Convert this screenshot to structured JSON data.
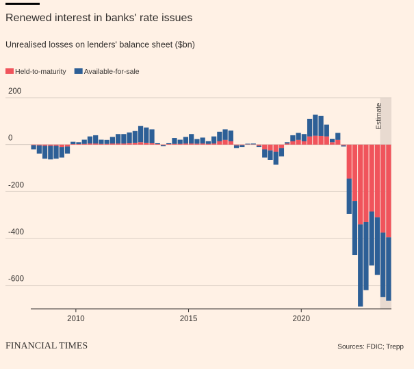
{
  "chart_data": {
    "type": "stacked_bar",
    "title": "Renewed interest in banks' rate issues",
    "subtitle": "Unrealised losses on lenders' balance sheet ($bn)",
    "source": "Sources: FDIC; Trepp",
    "brand": "FINANCIAL TIMES",
    "x": [
      2008,
      2008.25,
      2008.5,
      2008.75,
      2009,
      2009.25,
      2009.5,
      2009.75,
      2010,
      2010.25,
      2010.5,
      2010.75,
      2011,
      2011.25,
      2011.5,
      2011.75,
      2012,
      2012.25,
      2012.5,
      2012.75,
      2013,
      2013.25,
      2013.5,
      2013.75,
      2014,
      2014.25,
      2014.5,
      2014.75,
      2015,
      2015.25,
      2015.5,
      2015.75,
      2016,
      2016.25,
      2016.5,
      2016.75,
      2017,
      2017.25,
      2017.5,
      2017.75,
      2018,
      2018.25,
      2018.5,
      2018.75,
      2019,
      2019.25,
      2019.5,
      2019.75,
      2020,
      2020.25,
      2020.5,
      2020.75,
      2021,
      2021.25,
      2021.5,
      2021.75,
      2022,
      2022.25,
      2022.5,
      2022.75,
      2023,
      2023.25,
      2023.5,
      2023.75
    ],
    "bar_width": 0.25,
    "series": [
      {
        "name": "Held-to-maturity",
        "color": "#f0545c",
        "values": [
          -2,
          -3,
          -5,
          -5,
          -5,
          -10,
          -8,
          2,
          2,
          3,
          5,
          5,
          3,
          3,
          5,
          5,
          5,
          7,
          8,
          10,
          8,
          7,
          2,
          -2,
          2,
          3,
          3,
          5,
          5,
          4,
          5,
          3,
          5,
          15,
          20,
          15,
          -3,
          -2,
          1,
          1,
          -5,
          -20,
          -25,
          -30,
          -15,
          5,
          15,
          20,
          15,
          35,
          38,
          37,
          35,
          10,
          20,
          -3,
          -145,
          -240,
          -340,
          -330,
          -285,
          -310,
          -375,
          -395
        ]
      },
      {
        "name": "Available-for-sale",
        "color": "#2d5f96",
        "values": [
          -18,
          -35,
          -55,
          -58,
          -55,
          -45,
          -30,
          10,
          8,
          18,
          30,
          35,
          18,
          17,
          28,
          40,
          40,
          45,
          50,
          70,
          65,
          58,
          5,
          -5,
          5,
          25,
          18,
          28,
          40,
          20,
          25,
          12,
          30,
          40,
          45,
          45,
          -12,
          -8,
          3,
          4,
          -5,
          -35,
          -40,
          -55,
          -35,
          5,
          25,
          30,
          30,
          75,
          90,
          85,
          50,
          15,
          30,
          -5,
          -150,
          -230,
          -350,
          -290,
          -230,
          -245,
          -275,
          -270
        ]
      }
    ],
    "xlim": [
      2008,
      2024
    ],
    "xticks": [
      2010,
      2015,
      2020
    ],
    "ylim": [
      -700,
      200
    ],
    "yticks": [
      200,
      0,
      -200,
      -400,
      -600
    ],
    "grid": true,
    "shade": {
      "from": 2023.5,
      "to": 2024,
      "label": "Estimate",
      "color": "#e8dad0"
    }
  }
}
